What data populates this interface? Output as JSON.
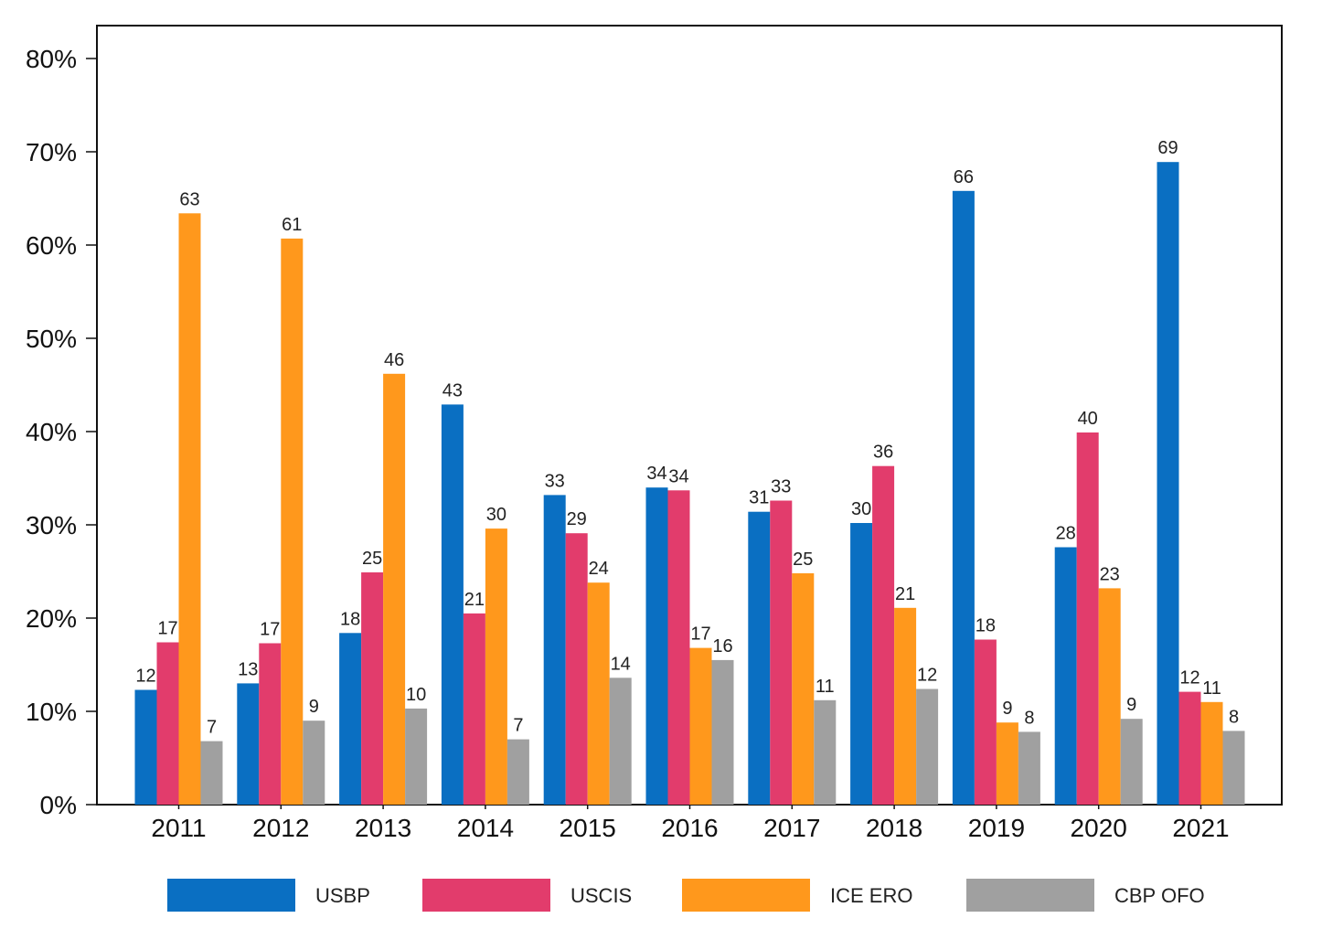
{
  "chart_data": {
    "type": "bar",
    "title": "",
    "xlabel": "",
    "ylabel": "",
    "ylim": [
      0,
      80
    ],
    "y_tick_values": [
      0,
      10,
      20,
      30,
      40,
      50,
      60,
      70,
      80
    ],
    "y_tick_labels": [
      "0%",
      "10%",
      "20%",
      "30%",
      "40%",
      "50%",
      "60%",
      "70%",
      "80%"
    ],
    "grid": false,
    "legend_position": "bottom",
    "categories": [
      "2011",
      "2012",
      "2013",
      "2014",
      "2015",
      "2016",
      "2017",
      "2018",
      "2019",
      "2020",
      "2021"
    ],
    "series": [
      {
        "name": "USBP",
        "color": "#0A6FC2",
        "values": [
          12.3,
          13.0,
          18.4,
          42.9,
          33.2,
          34.0,
          31.4,
          30.2,
          65.8,
          27.6,
          68.9
        ],
        "labels": [
          "12",
          "13",
          "18",
          "43",
          "33",
          "34",
          "31",
          "30",
          "66",
          "28",
          "69"
        ]
      },
      {
        "name": "USCIS",
        "color": "#E23C6C",
        "values": [
          17.4,
          17.3,
          24.9,
          20.5,
          29.1,
          33.7,
          32.6,
          36.3,
          17.7,
          39.9,
          12.1
        ],
        "labels": [
          "17",
          "17",
          "25",
          "21",
          "29",
          "34",
          "33",
          "36",
          "18",
          "40",
          "12"
        ]
      },
      {
        "name": "ICE ERO",
        "color": "#FF981C",
        "values": [
          63.4,
          60.7,
          46.2,
          29.6,
          23.8,
          16.8,
          24.8,
          21.1,
          8.8,
          23.2,
          11.0
        ],
        "labels": [
          "63",
          "61",
          "46",
          "30",
          "24",
          "17",
          "25",
          "21",
          "9",
          "23",
          "11"
        ]
      },
      {
        "name": "CBP OFO",
        "color": "#A0A0A0",
        "values": [
          6.8,
          9.0,
          10.3,
          7.0,
          13.6,
          15.5,
          11.2,
          12.4,
          7.8,
          9.2,
          7.9
        ],
        "labels": [
          "7",
          "9",
          "10",
          "7",
          "14",
          "16",
          "11",
          "12",
          "8",
          "9",
          "8"
        ]
      }
    ]
  }
}
